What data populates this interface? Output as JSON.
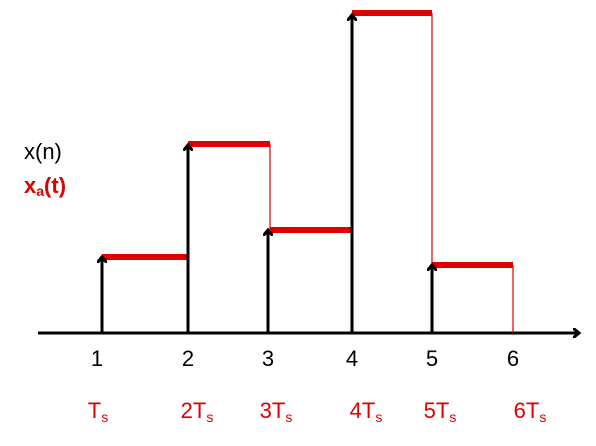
{
  "labels": {
    "signal": "x(n)",
    "held": {
      "base": "x",
      "sub": "a",
      "rest": "(t)"
    }
  },
  "sample_numbers": [
    "1",
    "2",
    "3",
    "4",
    "5",
    "6"
  ],
  "time_labels": [
    {
      "text": "T",
      "sub": "s"
    },
    {
      "text": "2T",
      "sub": "s"
    },
    {
      "text": "3T",
      "sub": "s"
    },
    {
      "text": "4T",
      "sub": "s"
    },
    {
      "text": "5T",
      "sub": "s"
    },
    {
      "text": "6T",
      "sub": "s"
    }
  ]
}
